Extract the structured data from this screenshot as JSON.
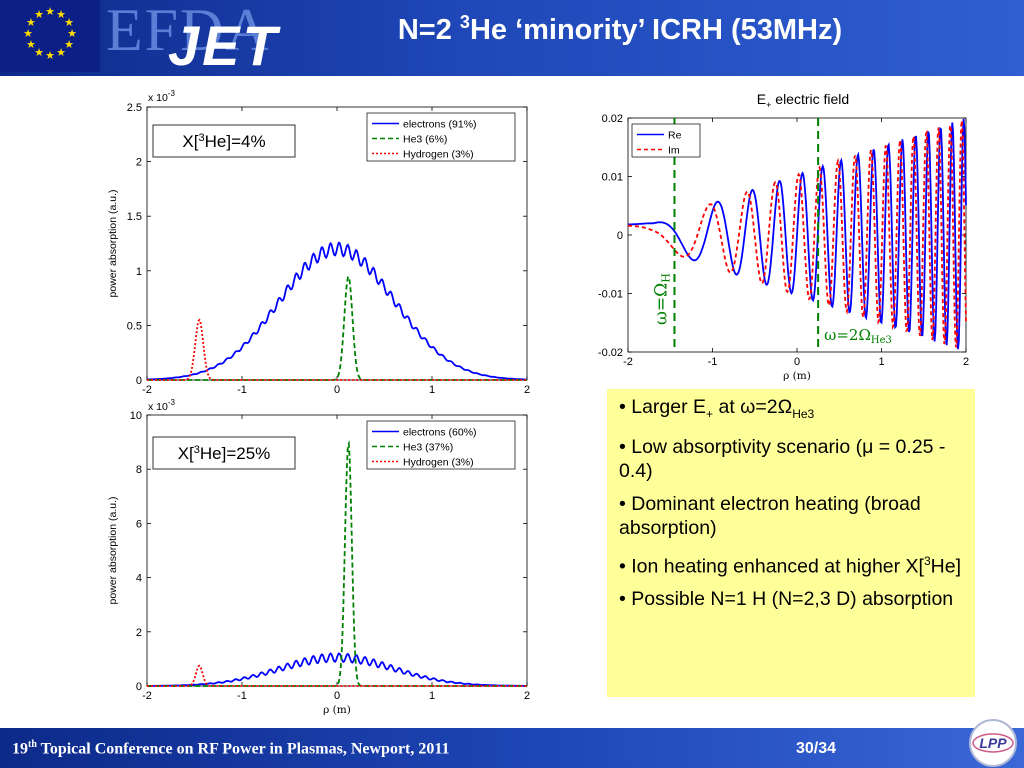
{
  "title": {
    "pre": "N=2 ",
    "sup": "3",
    "post": "He ‘minority’ ICRH (53MHz)"
  },
  "logo": {
    "efda": "EFDA",
    "jet": "JET"
  },
  "footer": {
    "ordinal_num": "19",
    "ordinal_sup": "th",
    "text": " Topical Conference on RF Power in Plasmas, Newport, 2011",
    "page": "30/34"
  },
  "lpp_logo": {
    "text": "LPP"
  },
  "colors": {
    "electrons": "#0000ff",
    "he3": "#008000",
    "hydrogen": "#ff0000",
    "re": "#0000ff",
    "im": "#ff0000",
    "bullet_bg": "#ffff99"
  },
  "bullets": [
    {
      "id": "b1",
      "parts": [
        "• Larger E",
        "+",
        " at ω=2Ω",
        "He3"
      ]
    },
    {
      "id": "b2",
      "parts": [
        "• Low absorptivity scenario (μ = 0.25 - 0.4)"
      ]
    },
    {
      "id": "b3",
      "parts": [
        "• Dominant electron heating (broad absorption)"
      ]
    },
    {
      "id": "b4",
      "parts": [
        "• Ion heating enhanced at higher X[",
        "3",
        "He]"
      ]
    },
    {
      "id": "b5",
      "parts": [
        "• Possible N=1 H (N=2,3 D) absorption"
      ]
    }
  ],
  "chart_data": [
    {
      "id": "top",
      "type": "line",
      "annotation": {
        "pre": "X[",
        "sup": "3",
        "post": "He]=4%"
      },
      "ylabel": "power absorption (a.u.)",
      "xlabel": "",
      "multiplier": {
        "base": "x 10",
        "exp": "-3"
      },
      "xlim": [
        -2,
        2
      ],
      "ylim": [
        0,
        2.5
      ],
      "xticks": [
        -2,
        -1,
        0,
        1,
        2
      ],
      "yticks": [
        0,
        0.5,
        1,
        1.5,
        2,
        2.5
      ],
      "legend": [
        "electrons (91%)",
        "He3 (6%)",
        "Hydrogen (3%)"
      ],
      "series": [
        {
          "name": "electrons (91%)",
          "color": "#0000ff",
          "dash": "",
          "model": "electrons",
          "amp": 1.2,
          "width": 0.85,
          "ripple": 0.05,
          "freq": 22
        },
        {
          "name": "He3 (6%)",
          "color": "#008000",
          "dash": "5,3",
          "model": "peak",
          "amp": 0.95,
          "center": 0.12,
          "width": 0.06
        },
        {
          "name": "Hydrogen (3%)",
          "color": "#ff0000",
          "dash": "2,2",
          "model": "peak",
          "amp": 0.55,
          "center": -1.45,
          "width": 0.06
        }
      ]
    },
    {
      "id": "bottom",
      "type": "line",
      "annotation": {
        "pre": "X[",
        "sup": "3",
        "post": "He]=25%"
      },
      "ylabel": "power absorption (a.u.)",
      "xlabel": "ρ (m)",
      "multiplier": {
        "base": "x 10",
        "exp": "-3"
      },
      "xlim": [
        -2,
        2
      ],
      "ylim": [
        0,
        10
      ],
      "xticks": [
        -2,
        -1,
        0,
        1,
        2
      ],
      "yticks": [
        0,
        2,
        4,
        6,
        8,
        10
      ],
      "legend": [
        "electrons (60%)",
        "He3 (37%)",
        "Hydrogen (3%)"
      ],
      "series": [
        {
          "name": "electrons (60%)",
          "color": "#0000ff",
          "dash": "",
          "model": "electrons",
          "amp": 1.05,
          "width": 0.85,
          "ripple": 0.15,
          "freq": 22
        },
        {
          "name": "He3 (37%)",
          "color": "#008000",
          "dash": "5,3",
          "model": "peak",
          "amp": 9.0,
          "center": 0.12,
          "width": 0.05
        },
        {
          "name": "Hydrogen (3%)",
          "color": "#ff0000",
          "dash": "2,2",
          "model": "peak",
          "amp": 0.75,
          "center": -1.45,
          "width": 0.05
        }
      ]
    },
    {
      "id": "efield",
      "type": "line",
      "title_parts": [
        "E",
        "+",
        " electric field"
      ],
      "xlabel": "ρ (m)",
      "xlim": [
        -2,
        2
      ],
      "ylim": [
        -0.02,
        0.02
      ],
      "xticks": [
        -2,
        -1,
        0,
        1,
        2
      ],
      "yticks": [
        -0.02,
        -0.01,
        0,
        0.01,
        0.02
      ],
      "legend": [
        "Re",
        "Im"
      ],
      "series": [
        {
          "name": "Re",
          "color": "#0000ff",
          "dash": "",
          "model": "wave",
          "phase": 0
        },
        {
          "name": "Im",
          "color": "#ff0000",
          "dash": "4,3",
          "model": "wave",
          "phase": 1.1
        }
      ],
      "vlines": [
        {
          "x": -1.45,
          "label": "ω=Ω",
          "sub": "H",
          "rotated": true
        },
        {
          "x": 0.25,
          "label": "ω=2Ω",
          "sub": "He3",
          "rotated": false
        }
      ]
    }
  ]
}
